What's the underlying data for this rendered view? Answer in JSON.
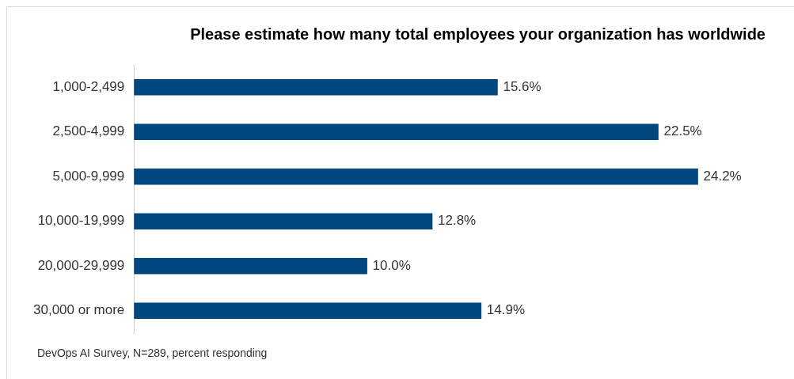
{
  "chart_data": {
    "type": "bar",
    "orientation": "horizontal",
    "title": "Please estimate how many total employees your organization has worldwide",
    "categories": [
      "1,000-2,499",
      "2,500-4,999",
      "5,000-9,999",
      "10,000-19,999",
      "20,000-29,999",
      "30,000 or more"
    ],
    "values": [
      15.6,
      22.5,
      24.2,
      12.8,
      10.0,
      14.9
    ],
    "value_labels": [
      "15.6%",
      "22.5%",
      "24.2%",
      "12.8%",
      "10.0%",
      "14.9%"
    ],
    "color": "#00467f",
    "legend": false,
    "tick_labels": "y",
    "annotations": [
      "DevOps AI Survey, N=289, percent responding"
    ]
  }
}
